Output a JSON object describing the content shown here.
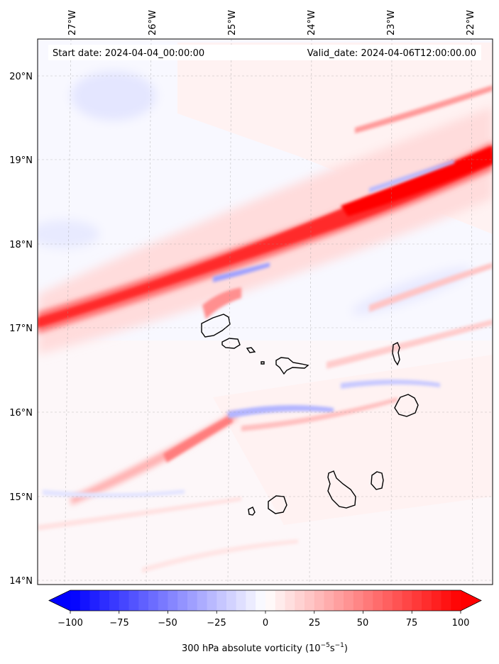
{
  "map": {
    "start_date": "Start date: 2024-04-04_00:00:00",
    "valid_date": "Valid_date: 2024-04-06T12:00:00.00",
    "longitude_labels": [
      "27°W",
      "26°W",
      "25°W",
      "24°W",
      "23°W",
      "22°W"
    ],
    "latitude_labels": [
      "20°N",
      "19°N",
      "18°N",
      "17°N",
      "16°N",
      "15°N",
      "14°N"
    ],
    "extent": {
      "lon_min": -27.35,
      "lon_max": -21.78,
      "lat_min": 13.95,
      "lat_max": 20.42
    },
    "variable": "300 hPa absolute vorticity"
  },
  "colorbar": {
    "ticks": [
      "−100",
      "−75",
      "−50",
      "−25",
      "0",
      "25",
      "50",
      "75",
      "100"
    ],
    "label_main": "300 hPa absolute vorticity (10",
    "label_sup1": "−5",
    "label_mid": "s",
    "label_sup2": "−1",
    "label_end": ")",
    "vmin": -100,
    "vmax": 100,
    "levels": 40,
    "cmap": "bwr",
    "extend": "both",
    "color_low": "#0000ff",
    "color_mid": "#ffffff",
    "color_high": "#ff0000"
  }
}
